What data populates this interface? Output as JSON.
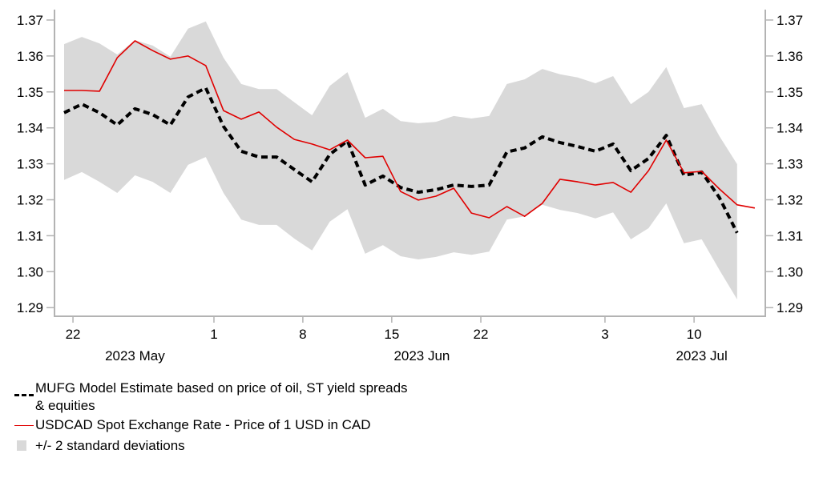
{
  "chart_data": {
    "type": "line",
    "title": "",
    "xlabel": "",
    "ylabel": "",
    "x_unit": "business-day index",
    "ylim": [
      1.285,
      1.372
    ],
    "xlim": [
      -0.55,
      39.7
    ],
    "grid": false,
    "legend_position": "bottom-left",
    "y_ticks": [
      1.29,
      1.3,
      1.31,
      1.32,
      1.33,
      1.34,
      1.35,
      1.36,
      1.37
    ],
    "y_tick_labels": [
      "1.29",
      "1.30",
      "1.31",
      "1.32",
      "1.33",
      "1.34",
      "1.35",
      "1.36",
      "1.37"
    ],
    "x_ticks": [
      {
        "label": "22",
        "pos": 0.5
      },
      {
        "label": "1",
        "pos": 8.46
      },
      {
        "label": "8",
        "pos": 13.48
      },
      {
        "label": "15",
        "pos": 18.5
      },
      {
        "label": "22",
        "pos": 23.53
      },
      {
        "label": "3",
        "pos": 30.54
      },
      {
        "label": "10",
        "pos": 35.57
      }
    ],
    "x_period_labels": [
      {
        "label": "2023 May",
        "pos": 4.0
      },
      {
        "label": "2023 Jun",
        "pos": 20.2
      },
      {
        "label": "2023 Jul",
        "pos": 36.0
      }
    ],
    "series": [
      {
        "name": "MUFG Model Estimate based on price of oil, ST yield spreads & equities",
        "style": "dashed",
        "color": "#000000",
        "values": [
          1.3442,
          1.3466,
          1.3442,
          1.3408,
          1.3453,
          1.3437,
          1.3408,
          1.3486,
          1.3511,
          1.3404,
          1.3335,
          1.3319,
          1.3319,
          1.3284,
          1.325,
          1.3326,
          1.3364,
          1.3241,
          1.3266,
          1.3234,
          1.3221,
          1.3228,
          1.3241,
          1.3237,
          1.3241,
          1.3333,
          1.3344,
          1.3375,
          1.3359,
          1.3348,
          1.3335,
          1.3355,
          1.3281,
          1.3315,
          1.3379,
          1.3268,
          1.3277,
          1.3206,
          1.3108
        ]
      },
      {
        "name": "USDCAD Spot Exchange Rate - Price of 1 USD in CAD",
        "style": "solid",
        "color": "#e00000",
        "values": [
          1.3504,
          1.3504,
          1.3502,
          1.3595,
          1.3642,
          1.3615,
          1.3591,
          1.36,
          1.3573,
          1.3448,
          1.3424,
          1.3444,
          1.3402,
          1.3368,
          1.3355,
          1.3339,
          1.3366,
          1.3317,
          1.3321,
          1.3223,
          1.3199,
          1.321,
          1.3232,
          1.3163,
          1.315,
          1.3181,
          1.3154,
          1.319,
          1.3257,
          1.325,
          1.3241,
          1.3248,
          1.3221,
          1.3281,
          1.3366,
          1.3275,
          1.3279,
          1.323,
          1.3186,
          1.3177
        ]
      },
      {
        "name": "+/- 2 standard deviations",
        "style": "band",
        "color": "#d9d9d9",
        "upper": [
          1.3633,
          1.3653,
          1.3635,
          1.3604,
          1.3644,
          1.3629,
          1.3598,
          1.3676,
          1.3696,
          1.3595,
          1.3522,
          1.3508,
          1.3508,
          1.3471,
          1.3435,
          1.3517,
          1.3555,
          1.3428,
          1.3453,
          1.3419,
          1.3413,
          1.3417,
          1.3433,
          1.3426,
          1.3433,
          1.3522,
          1.3535,
          1.3564,
          1.3549,
          1.354,
          1.3524,
          1.3544,
          1.3466,
          1.35,
          1.3569,
          1.3455,
          1.3466,
          1.3377,
          1.3299
        ],
        "lower": [
          1.3255,
          1.3277,
          1.325,
          1.3219,
          1.3268,
          1.325,
          1.3219,
          1.3297,
          1.3319,
          1.3219,
          1.3145,
          1.313,
          1.313,
          1.3092,
          1.3059,
          1.3139,
          1.3174,
          1.305,
          1.3074,
          1.3043,
          1.3034,
          1.3041,
          1.3054,
          1.3047,
          1.3056,
          1.3145,
          1.3154,
          1.3186,
          1.3172,
          1.3163,
          1.3148,
          1.3165,
          1.309,
          1.3121,
          1.319,
          1.3079,
          1.309,
          1.3005,
          1.2923
        ]
      }
    ]
  },
  "legend": {
    "items": [
      {
        "label_line1": "MUFG Model Estimate based on price of oil, ST yield spreads",
        "label_line2": "& equities"
      },
      {
        "label": "USDCAD Spot Exchange Rate - Price of 1 USD in CAD"
      },
      {
        "label": "+/- 2 standard deviations"
      }
    ]
  }
}
